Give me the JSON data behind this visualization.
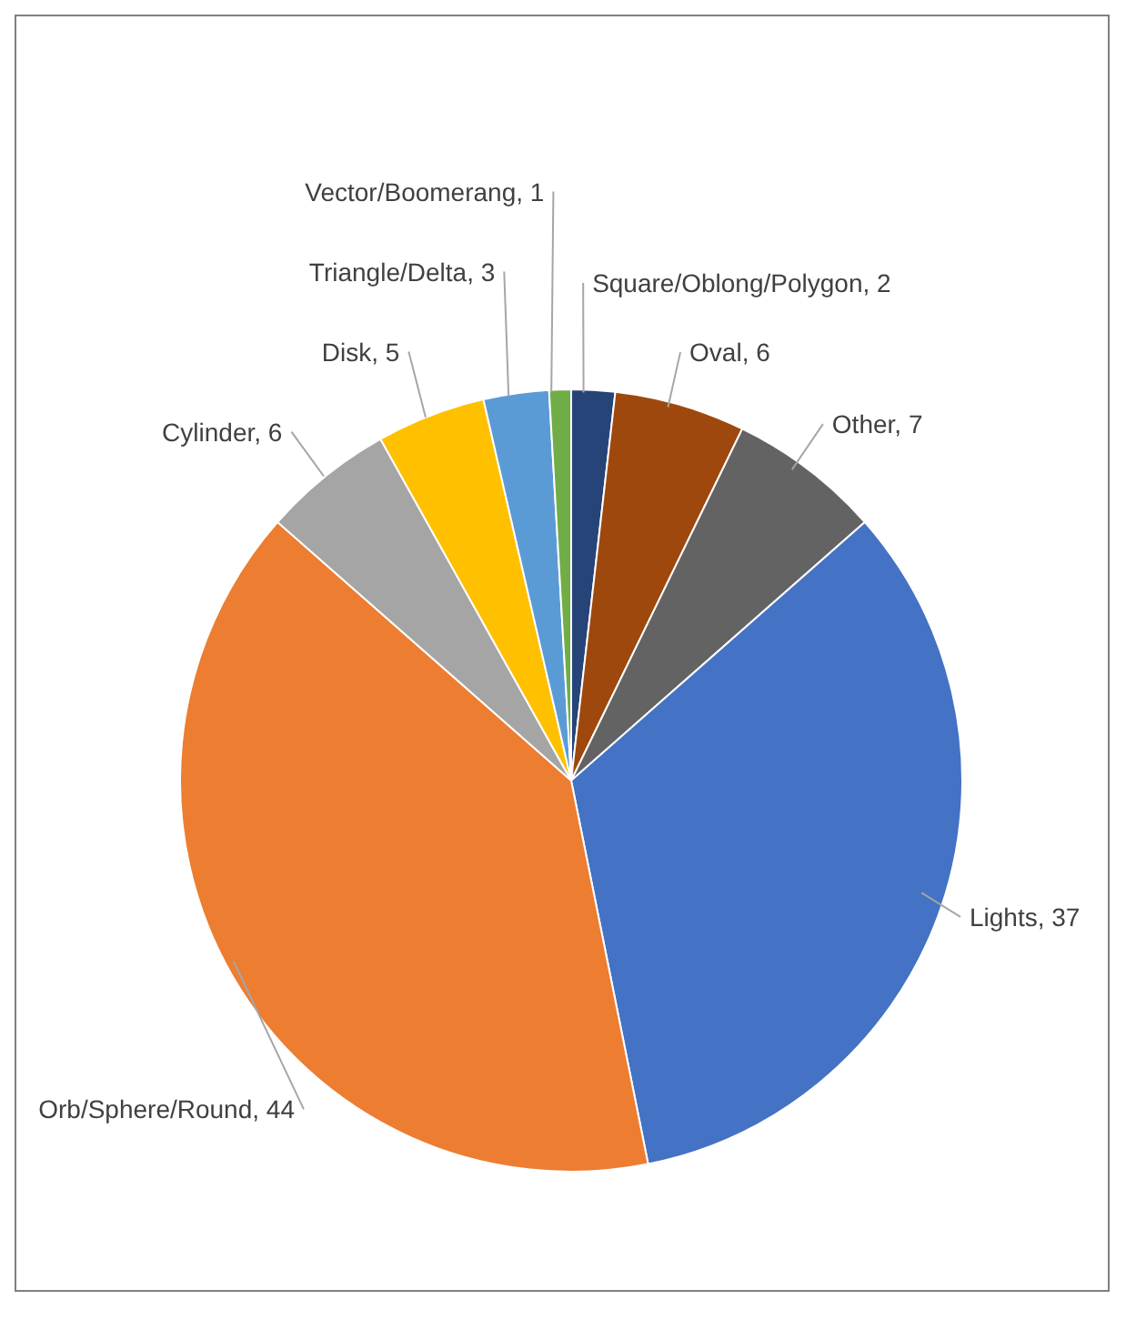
{
  "chart_data": {
    "type": "pie",
    "categories": [
      "Square/Oblong/Polygon",
      "Oval",
      "Other",
      "Lights",
      "Orb/Sphere/Round",
      "Cylinder",
      "Disk",
      "Triangle/Delta",
      "Vector/Boomerang"
    ],
    "values": [
      2,
      6,
      7,
      37,
      44,
      6,
      5,
      3,
      1
    ],
    "colors": [
      "#264478",
      "#9e480e",
      "#636363",
      "#4472c4",
      "#ed7d31",
      "#a5a5a5",
      "#ffc000",
      "#5b9bd5",
      "#70ad47"
    ],
    "value_labels": [
      ", 2",
      ", 6",
      ", 7",
      ", 37",
      ", 44",
      ", 6",
      ", 5",
      ", 3",
      ", 1"
    ],
    "legend": false
  }
}
